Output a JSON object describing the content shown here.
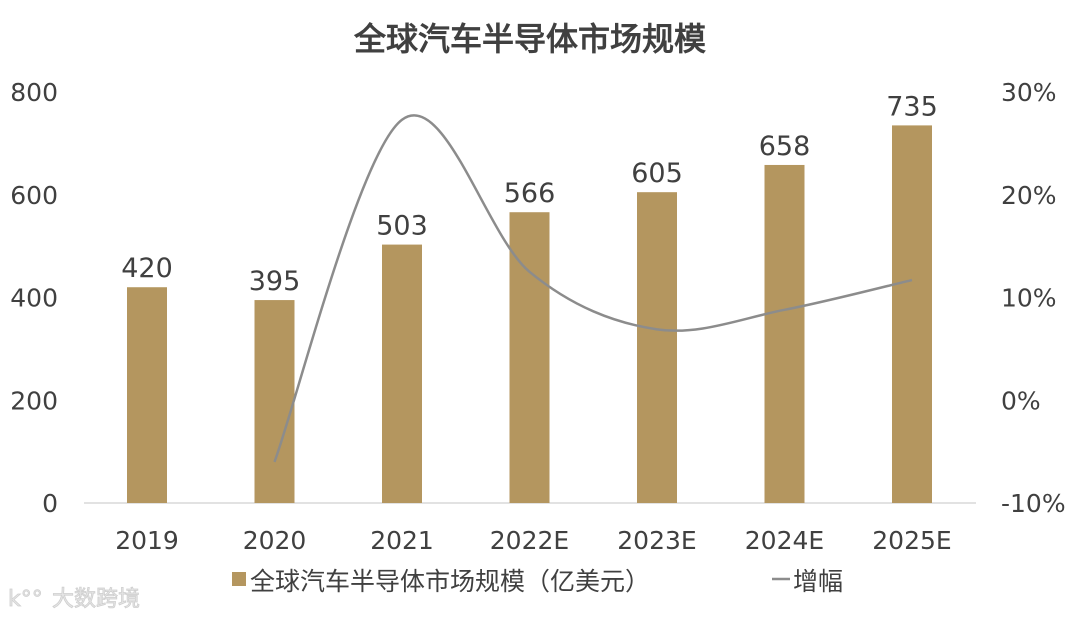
{
  "chart_data": {
    "type": "bar",
    "title": "全球汽车半导体市场规模",
    "categories": [
      "2019",
      "2020",
      "2021",
      "2022E",
      "2023E",
      "2024E",
      "2025E"
    ],
    "series": [
      {
        "name": "全球汽车半导体市场规模（亿美元）",
        "type": "bar",
        "axis": "left",
        "values": [
          420,
          395,
          503,
          566,
          605,
          658,
          735
        ],
        "color": "#b4965f"
      },
      {
        "name": "增幅",
        "type": "line",
        "axis": "right",
        "values": [
          null,
          -6.0,
          27.3,
          12.5,
          6.9,
          8.8,
          11.7
        ],
        "color": "#8c8c8c"
      }
    ],
    "y_left": {
      "min": 0,
      "max": 800,
      "ticks": [
        "0",
        "200",
        "400",
        "600",
        "800"
      ]
    },
    "y_right": {
      "min": -10,
      "max": 30,
      "ticks": [
        "-10%",
        "0%",
        "10%",
        "20%",
        "30%"
      ]
    },
    "grid": false,
    "legend_position": "bottom",
    "legend_marker_bar": "■",
    "legend_marker_line": "—"
  },
  "watermark": "大数跨境"
}
